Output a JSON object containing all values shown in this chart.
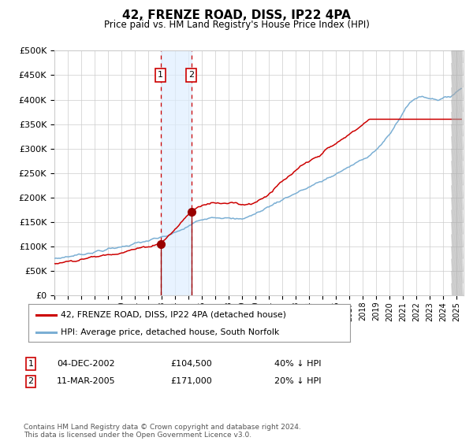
{
  "title": "42, FRENZE ROAD, DISS, IP22 4PA",
  "subtitle": "Price paid vs. HM Land Registry's House Price Index (HPI)",
  "legend_line1": "42, FRENZE ROAD, DISS, IP22 4PA (detached house)",
  "legend_line2": "HPI: Average price, detached house, South Norfolk",
  "label1_date": "04-DEC-2002",
  "label1_price": "£104,500",
  "label1_hpi": "40% ↓ HPI",
  "label2_date": "11-MAR-2005",
  "label2_price": "£171,000",
  "label2_hpi": "20% ↓ HPI",
  "footnote": "Contains HM Land Registry data © Crown copyright and database right 2024.\nThis data is licensed under the Open Government Licence v3.0.",
  "hpi_color": "#7bafd4",
  "price_color": "#cc0000",
  "marker_color": "#990000",
  "vline_color": "#cc0000",
  "shade_color": "#ddeeff",
  "grid_color": "#cccccc",
  "bg_color": "#ffffff",
  "ylim": [
    0,
    500000
  ],
  "yticks": [
    0,
    50000,
    100000,
    150000,
    200000,
    250000,
    300000,
    350000,
    400000,
    450000,
    500000
  ],
  "sale1_year": 2002.917,
  "sale1_value": 104500,
  "sale2_year": 2005.208,
  "sale2_value": 171000,
  "xstart": 1995,
  "xend": 2025.5
}
